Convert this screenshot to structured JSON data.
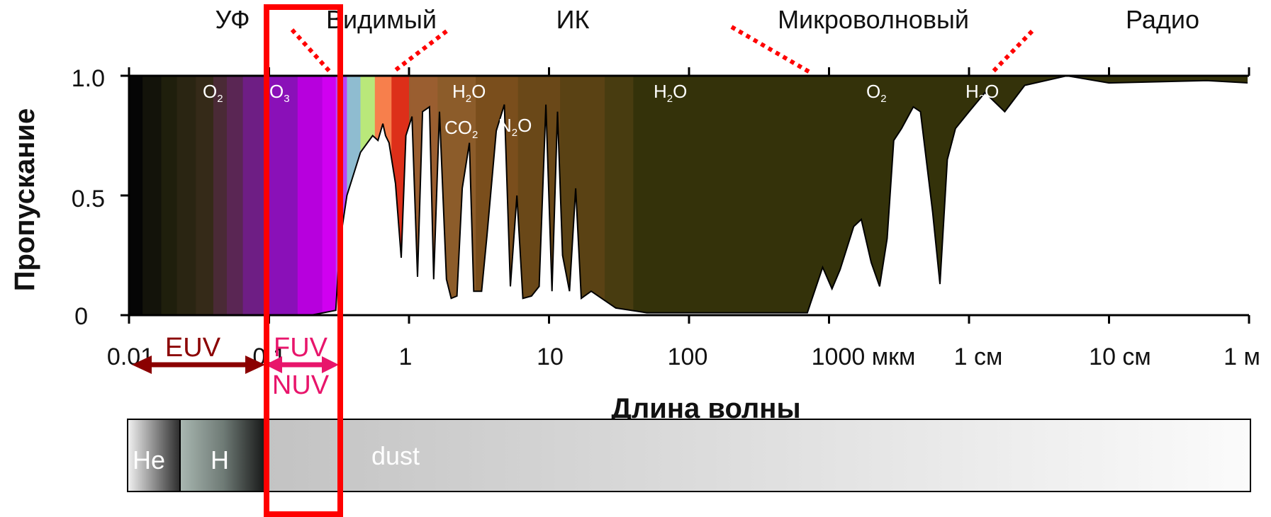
{
  "regions": [
    "УФ",
    "Видимый",
    "ИК",
    "Микроволновый",
    "Радио"
  ],
  "y_axis": {
    "label": "Пропускание",
    "ticks": [
      "1.0",
      "0.5",
      "0"
    ]
  },
  "x_axis": {
    "label": "Длина волны",
    "ticks": [
      "0.01",
      "0.1",
      "1",
      "10",
      "100",
      "1000 мкм",
      "1 см",
      "10 см",
      "1 м"
    ]
  },
  "molecules": [
    {
      "base": "O",
      "sub": "2"
    },
    {
      "base": "O",
      "sub": "3"
    },
    {
      "base": "H",
      "sub": "2",
      "tail": "O"
    },
    {
      "base": "CO",
      "sub": "2"
    },
    {
      "base": "N",
      "sub": "2",
      "tail": "O"
    },
    {
      "base": "H",
      "sub": "2",
      "tail": "O"
    },
    {
      "base": "O",
      "sub": "2"
    },
    {
      "base": "H",
      "sub": "2",
      "tail": "O"
    }
  ],
  "bands": {
    "euv": "EUV",
    "fuv": "FUV",
    "nuv": "NUV"
  },
  "absorbers": {
    "he": "He",
    "h": "H",
    "dust": "dust"
  },
  "colors": {
    "highlight": "#ff0000",
    "euv_arrow": "#8b0000",
    "fuv_arrow": "#e8156b",
    "atmosphere_dark": "#34320a"
  },
  "chart_data": {
    "type": "area",
    "x_scale": "log",
    "x_unit": "мкм",
    "xlim": [
      0.01,
      1000000
    ],
    "ylim": [
      0,
      1
    ],
    "series": [
      {
        "points": [
          [
            0.01,
            0
          ],
          [
            0.1,
            0
          ],
          [
            0.2,
            0.0
          ],
          [
            0.3,
            0.02
          ],
          [
            0.32,
            0.3
          ],
          [
            0.36,
            0.5
          ],
          [
            0.45,
            0.68
          ],
          [
            0.55,
            0.75
          ],
          [
            0.6,
            0.73
          ],
          [
            0.65,
            0.8
          ],
          [
            0.68,
            0.75
          ],
          [
            0.72,
            0.72
          ],
          [
            0.8,
            0.55
          ],
          [
            0.88,
            0.24
          ],
          [
            0.95,
            0.75
          ],
          [
            1.05,
            0.83
          ],
          [
            1.15,
            0.16
          ],
          [
            1.25,
            0.85
          ],
          [
            1.4,
            0.87
          ],
          [
            1.5,
            0.15
          ],
          [
            1.65,
            0.85
          ],
          [
            1.85,
            0.15
          ],
          [
            2.0,
            0.07
          ],
          [
            2.2,
            0.08
          ],
          [
            2.4,
            0.53
          ],
          [
            2.7,
            0.72
          ],
          [
            2.9,
            0.1
          ],
          [
            3.3,
            0.1
          ],
          [
            3.6,
            0.33
          ],
          [
            4.2,
            0.77
          ],
          [
            4.8,
            0.88
          ],
          [
            5.3,
            0.12
          ],
          [
            5.9,
            0.5
          ],
          [
            6.5,
            0.07
          ],
          [
            7.5,
            0.08
          ],
          [
            8.5,
            0.12
          ],
          [
            9.5,
            0.88
          ],
          [
            10.5,
            0.1
          ],
          [
            11.5,
            0.85
          ],
          [
            12.5,
            0.25
          ],
          [
            14,
            0.1
          ],
          [
            15.5,
            0.53
          ],
          [
            17,
            0.07
          ],
          [
            20,
            0.1
          ],
          [
            30,
            0.03
          ],
          [
            50,
            0.01
          ],
          [
            700,
            0.01
          ],
          [
            900,
            0.2
          ],
          [
            1050,
            0.11
          ],
          [
            1200,
            0.19
          ],
          [
            1500,
            0.37
          ],
          [
            1700,
            0.4
          ],
          [
            2000,
            0.22
          ],
          [
            2300,
            0.12
          ],
          [
            2600,
            0.32
          ],
          [
            2900,
            0.73
          ],
          [
            3300,
            0.78
          ],
          [
            4000,
            0.87
          ],
          [
            4500,
            0.85
          ],
          [
            5500,
            0.43
          ],
          [
            6200,
            0.13
          ],
          [
            7000,
            0.65
          ],
          [
            8000,
            0.78
          ],
          [
            10000,
            0.85
          ],
          [
            13000,
            0.93
          ],
          [
            18000,
            0.85
          ],
          [
            25000,
            0.96
          ],
          [
            50000,
            1.0
          ],
          [
            100000,
            0.97
          ],
          [
            500000,
            0.98
          ],
          [
            1000000,
            0.97
          ]
        ]
      }
    ]
  }
}
